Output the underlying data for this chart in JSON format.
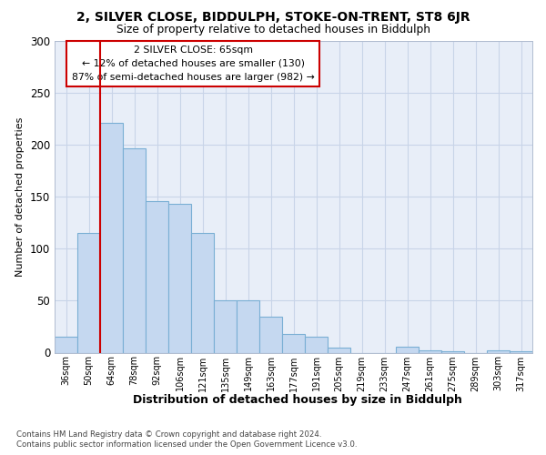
{
  "title1": "2, SILVER CLOSE, BIDDULPH, STOKE-ON-TRENT, ST8 6JR",
  "title2": "Size of property relative to detached houses in Biddulph",
  "xlabel": "Distribution of detached houses by size in Biddulph",
  "ylabel": "Number of detached properties",
  "categories": [
    "36sqm",
    "50sqm",
    "64sqm",
    "78sqm",
    "92sqm",
    "106sqm",
    "121sqm",
    "135sqm",
    "149sqm",
    "163sqm",
    "177sqm",
    "191sqm",
    "205sqm",
    "219sqm",
    "233sqm",
    "247sqm",
    "261sqm",
    "275sqm",
    "289sqm",
    "303sqm",
    "317sqm"
  ],
  "values": [
    15,
    115,
    221,
    197,
    146,
    143,
    115,
    50,
    50,
    35,
    18,
    15,
    5,
    0,
    0,
    6,
    2,
    1,
    0,
    2,
    1
  ],
  "bar_color": "#c5d8f0",
  "bar_edge_color": "#7aafd4",
  "bg_color": "#e8eef8",
  "vline_index": 1.5,
  "vline_color": "#cc0000",
  "annotation_line1": "2 SILVER CLOSE: 65sqm",
  "annotation_line2": "← 12% of detached houses are smaller (130)",
  "annotation_line3": "87% of semi-detached houses are larger (982) →",
  "footnote1": "Contains HM Land Registry data © Crown copyright and database right 2024.",
  "footnote2": "Contains public sector information licensed under the Open Government Licence v3.0.",
  "ylim": [
    0,
    300
  ],
  "yticks": [
    0,
    50,
    100,
    150,
    200,
    250,
    300
  ]
}
